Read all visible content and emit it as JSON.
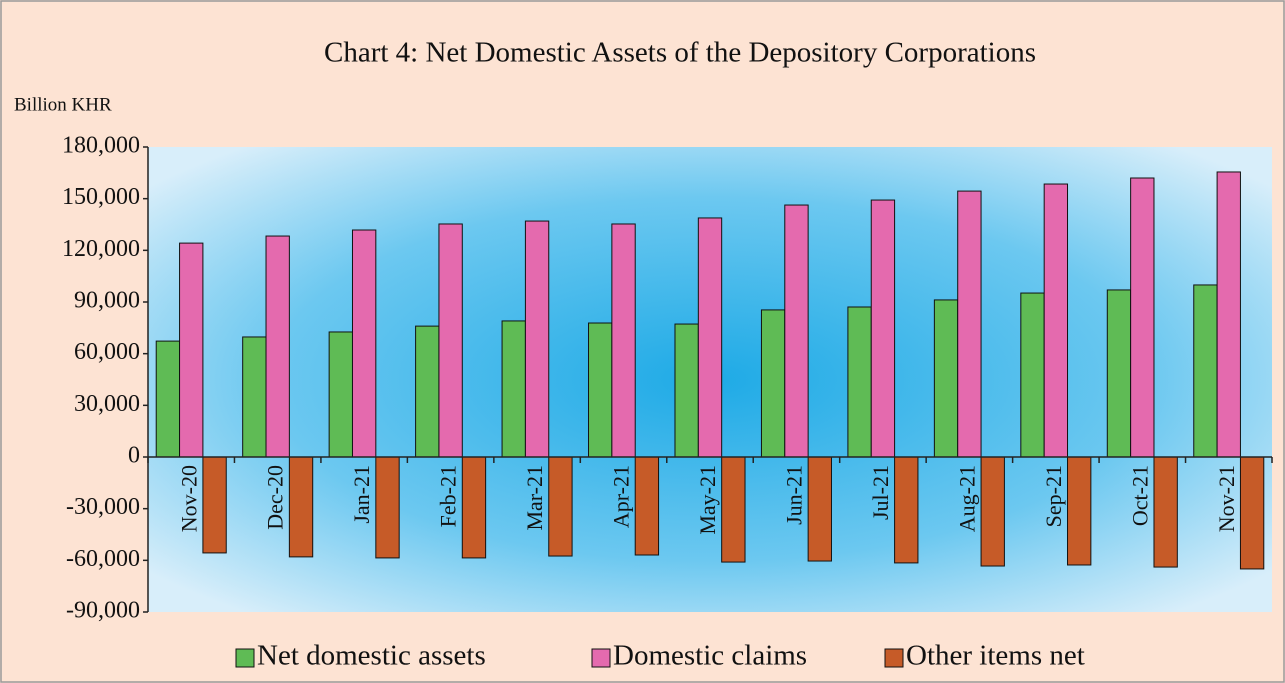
{
  "chart_data": {
    "type": "bar",
    "title": "Chart 4: Net Domestic Assets of the Depository Corporations",
    "y_label": "Billion KHR",
    "categories": [
      "Nov-20",
      "Dec-20",
      "Jan-21",
      "Feb-21",
      "Mar-21",
      "Apr-21",
      "May-21",
      "Jun-21",
      "Jul-21",
      "Aug-21",
      "Sep-21",
      "Oct-21",
      "Nov-21"
    ],
    "series": [
      {
        "name": "Net domestic assets",
        "color": "#5fbb55",
        "values": [
          67300,
          69700,
          72600,
          76000,
          79000,
          77800,
          77200,
          85400,
          87100,
          91200,
          95200,
          97000,
          99900
        ]
      },
      {
        "name": "Domestic claims",
        "color": "#e46aae",
        "values": [
          124200,
          128300,
          131800,
          135300,
          137000,
          135300,
          138800,
          146300,
          149200,
          154400,
          158500,
          162000,
          165500
        ]
      },
      {
        "name": "Other items net",
        "color": "#c65b28",
        "values": [
          -55700,
          -58000,
          -58600,
          -58600,
          -57500,
          -56900,
          -61000,
          -60400,
          -61500,
          -63300,
          -62700,
          -63900,
          -65000
        ]
      }
    ],
    "ylim": [
      -90000,
      180000
    ],
    "yticks": [
      {
        "value": -90000,
        "label": "-90,000"
      },
      {
        "value": -60000,
        "label": "-60,000"
      },
      {
        "value": -30000,
        "label": "-30,000"
      },
      0,
      {
        "value": 30000,
        "label": "30,000"
      },
      {
        "value": 60000,
        "label": "60,000"
      },
      {
        "value": 90000,
        "label": "90,000"
      },
      {
        "value": 120000,
        "label": "120,000"
      },
      {
        "value": 150000,
        "label": "150,000"
      },
      {
        "value": 180000,
        "label": "180,000"
      }
    ],
    "legend": "bottom"
  }
}
